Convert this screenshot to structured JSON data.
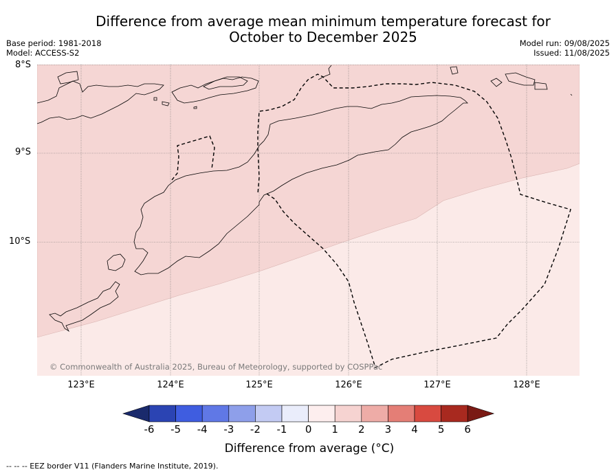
{
  "header": {
    "title_line1": "Difference from average mean minimum temperature forecast for",
    "title_line2": "October to December 2025",
    "base_period": "Base period: 1981-2018",
    "model": "Model: ACCESS-S2",
    "model_run": "Model run: 09/08/2025",
    "issued": "Issued: 11/08/2025"
  },
  "map": {
    "lat_labels": [
      "8°S",
      "9°S",
      "10°S"
    ],
    "lon_labels": [
      "123°E",
      "124°E",
      "125°E",
      "126°E",
      "127°E",
      "128°E"
    ],
    "credit": "© Commonwealth of Australia 2025, Bureau of Meteorology, supported by COSPPac",
    "colors": {
      "zone_1_to_2": "#f5d6d4",
      "zone_0_to_1": "#fbeae8",
      "coastline": "#000000",
      "eez": "#000000",
      "grid": "#666666"
    }
  },
  "colorbar": {
    "label": "Difference from average (°C)",
    "ticks": [
      "-6",
      "-5",
      "-4",
      "-3",
      "-2",
      "-1",
      "0",
      "1",
      "2",
      "3",
      "4",
      "5",
      "6"
    ],
    "colors": [
      "#1a2a6c",
      "#2b44b3",
      "#3f5de0",
      "#6078e6",
      "#8e9fea",
      "#c3cbf3",
      "#eaedfb",
      "#fdeeee",
      "#f6d3d1",
      "#eeaca7",
      "#e47e76",
      "#d84a40",
      "#a8291f",
      "#7a1a14"
    ]
  },
  "footnote": "--  --  -- EEZ border V11 (Flanders Marine Institute, 2019)."
}
